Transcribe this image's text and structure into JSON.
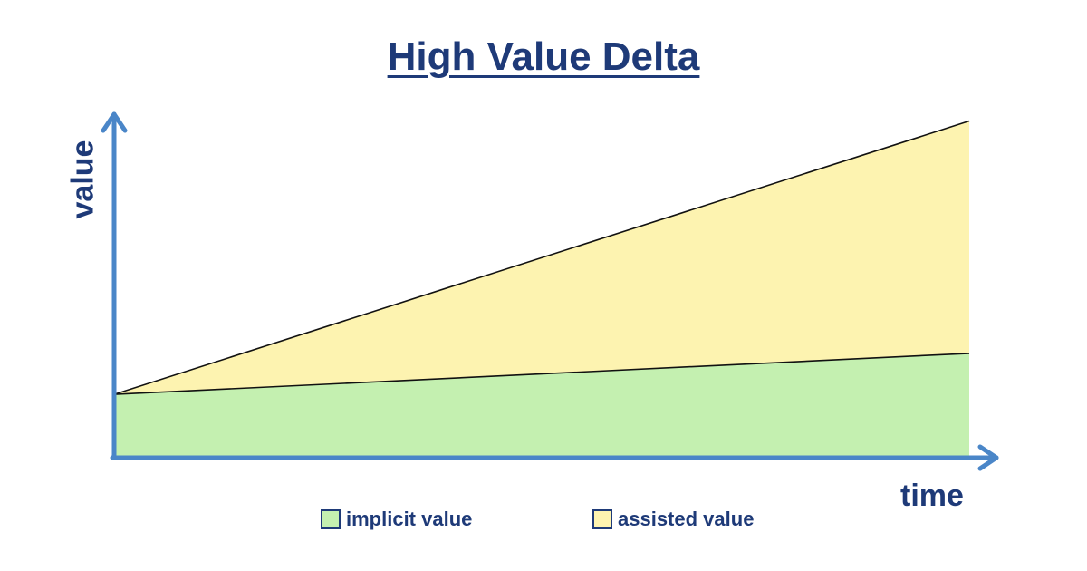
{
  "colors": {
    "text": "#1e3a78",
    "axis": "#4a86c8",
    "implicit_fill": "#c4f0b0",
    "assisted_fill": "#fdf3b0",
    "line": "#111111"
  },
  "chart_data": {
    "type": "area",
    "title": "High Value Delta",
    "xlabel": "time",
    "ylabel": "value",
    "x": [
      0,
      1
    ],
    "xlim": [
      0,
      1
    ],
    "ylim": [
      0,
      1
    ],
    "grid": false,
    "legend_position": "bottom",
    "series": [
      {
        "name": "implicit value",
        "values": [
          0.18,
          0.3
        ],
        "color": "#c4f0b0"
      },
      {
        "name": "assisted value",
        "values": [
          0.18,
          0.98
        ],
        "color": "#fdf3b0"
      }
    ]
  }
}
